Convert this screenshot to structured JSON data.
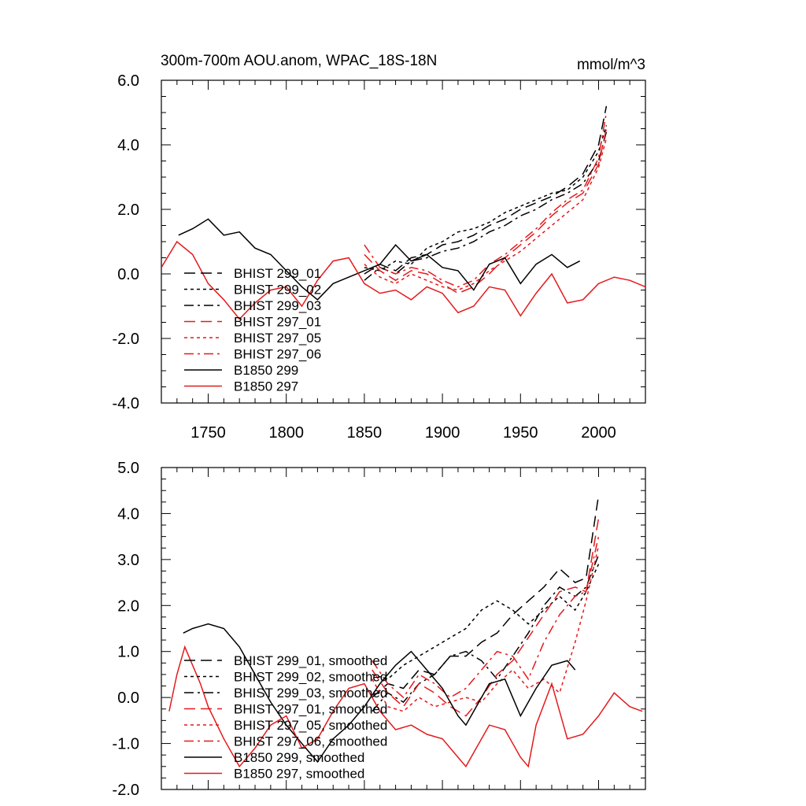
{
  "chart_data": [
    {
      "type": "line",
      "title": "300m-700m AOU.anom, WPAC_18S-18N",
      "units": "mmol/m^3",
      "xlim": [
        1720,
        2030
      ],
      "ylim": [
        -4.0,
        6.0
      ],
      "xticks": [
        1750,
        1800,
        1850,
        1900,
        1950,
        2000
      ],
      "xtick_labels": [
        "1750",
        "1800",
        "1850",
        "1900",
        "1950",
        "2000"
      ],
      "yticks": [
        -4.0,
        -2.0,
        0.0,
        2.0,
        4.0,
        6.0
      ],
      "ytick_labels": [
        "-4.0",
        "-2.0",
        "0.0",
        "2.0",
        "4.0",
        "6.0"
      ],
      "legend_position": "lower-left",
      "series": [
        {
          "name": "BHIST 299_01",
          "color": "#000000",
          "dash": "longdash",
          "x": [
            1850,
            1860,
            1870,
            1880,
            1890,
            1900,
            1910,
            1920,
            1930,
            1940,
            1950,
            1960,
            1970,
            1980,
            1990,
            2000,
            2005
          ],
          "y": [
            0.0,
            0.3,
            0.1,
            0.5,
            0.6,
            0.9,
            1.0,
            1.2,
            1.5,
            1.7,
            2.0,
            2.2,
            2.4,
            2.7,
            3.1,
            4.0,
            5.2
          ]
        },
        {
          "name": "BHIST 299_02",
          "color": "#000000",
          "dash": "shortdash",
          "x": [
            1850,
            1860,
            1870,
            1880,
            1890,
            1900,
            1910,
            1920,
            1930,
            1940,
            1950,
            1960,
            1970,
            1980,
            1990,
            2000,
            2005
          ],
          "y": [
            0.2,
            0.1,
            0.4,
            0.3,
            0.8,
            1.0,
            1.3,
            1.4,
            1.6,
            1.9,
            2.1,
            2.3,
            2.5,
            2.6,
            3.0,
            3.8,
            4.6
          ]
        },
        {
          "name": "BHIST 299_03",
          "color": "#000000",
          "dash": "dashdot",
          "x": [
            1850,
            1860,
            1870,
            1880,
            1890,
            1900,
            1910,
            1920,
            1930,
            1940,
            1950,
            1960,
            1970,
            1980,
            1990,
            2000,
            2005
          ],
          "y": [
            -0.2,
            0.2,
            0.0,
            0.4,
            0.5,
            0.7,
            0.8,
            1.0,
            1.3,
            1.5,
            1.8,
            2.0,
            2.3,
            2.5,
            2.8,
            3.5,
            4.4
          ]
        },
        {
          "name": "BHIST 297_01",
          "color": "#e41a1c",
          "dash": "longdash",
          "x": [
            1850,
            1860,
            1870,
            1880,
            1890,
            1900,
            1910,
            1920,
            1930,
            1940,
            1950,
            1960,
            1970,
            1980,
            1990,
            2000,
            2005
          ],
          "y": [
            0.6,
            0.1,
            -0.2,
            0.1,
            0.0,
            -0.3,
            -0.6,
            -0.4,
            0.0,
            0.5,
            0.9,
            1.3,
            1.8,
            2.2,
            2.5,
            3.4,
            4.5
          ]
        },
        {
          "name": "BHIST 297_05",
          "color": "#e41a1c",
          "dash": "shortdash",
          "x": [
            1850,
            1860,
            1870,
            1880,
            1890,
            1900,
            1910,
            1920,
            1930,
            1940,
            1950,
            1960,
            1970,
            1980,
            1990,
            2000,
            2005
          ],
          "y": [
            0.3,
            -0.1,
            -0.3,
            0.0,
            -0.2,
            -0.4,
            -0.5,
            -0.3,
            0.1,
            0.4,
            0.7,
            1.1,
            1.5,
            1.9,
            2.3,
            3.3,
            4.2
          ]
        },
        {
          "name": "BHIST 297_06",
          "color": "#e41a1c",
          "dash": "dashdot",
          "x": [
            1850,
            1860,
            1870,
            1880,
            1890,
            1900,
            1910,
            1920,
            1930,
            1940,
            1950,
            1960,
            1970,
            1980,
            1990,
            2000,
            2005
          ],
          "y": [
            0.9,
            0.2,
            0.0,
            0.2,
            0.1,
            -0.2,
            -0.4,
            -0.2,
            0.3,
            0.6,
            1.0,
            1.4,
            1.9,
            2.3,
            2.6,
            3.6,
            5.0
          ]
        },
        {
          "name": "B1850 299",
          "color": "#000000",
          "dash": "solid",
          "x": [
            1731,
            1740,
            1750,
            1760,
            1770,
            1780,
            1790,
            1800,
            1810,
            1820,
            1830,
            1840,
            1850,
            1860,
            1870,
            1880,
            1890,
            1900,
            1910,
            1920,
            1930,
            1940,
            1950,
            1960,
            1970,
            1980,
            1988
          ],
          "y": [
            1.2,
            1.4,
            1.7,
            1.2,
            1.3,
            0.8,
            0.6,
            0.1,
            -0.4,
            -0.8,
            -0.3,
            -0.1,
            0.1,
            0.3,
            0.9,
            0.4,
            0.6,
            0.2,
            0.1,
            -0.5,
            0.3,
            0.5,
            -0.3,
            0.3,
            0.6,
            0.2,
            0.4
          ]
        },
        {
          "name": "B1850 297",
          "color": "#e41a1c",
          "dash": "solid",
          "x": [
            1720,
            1730,
            1740,
            1750,
            1760,
            1770,
            1780,
            1790,
            1800,
            1810,
            1820,
            1830,
            1840,
            1850,
            1860,
            1870,
            1880,
            1890,
            1900,
            1910,
            1920,
            1930,
            1940,
            1950,
            1960,
            1970,
            1980,
            1990,
            2000,
            2010,
            2020,
            2030
          ],
          "y": [
            0.2,
            1.0,
            0.6,
            -0.3,
            -0.8,
            -1.4,
            -0.9,
            -0.5,
            -0.4,
            -1.0,
            -0.2,
            0.4,
            0.5,
            -0.3,
            -0.6,
            -0.5,
            -0.8,
            -0.4,
            -0.6,
            -1.2,
            -1.0,
            -0.4,
            -0.5,
            -1.3,
            -0.6,
            0.0,
            -0.9,
            -0.8,
            -0.3,
            -0.1,
            -0.2,
            -0.4
          ]
        }
      ]
    },
    {
      "type": "line",
      "xlim": [
        1720,
        2030
      ],
      "ylim": [
        -2.0,
        5.0
      ],
      "xticks": [
        1750,
        1800,
        1850,
        1900,
        1950,
        2000
      ],
      "yticks": [
        -2.0,
        -1.0,
        0.0,
        1.0,
        2.0,
        3.0,
        4.0,
        5.0
      ],
      "ytick_labels": [
        "-2.0",
        "-1.0",
        "0.0",
        "1.0",
        "2.0",
        "3.0",
        "4.0",
        "5.0"
      ],
      "legend_position": "lower-left",
      "series": [
        {
          "name": "BHIST 299_01, smoothed",
          "color": "#000000",
          "dash": "longdash",
          "x": [
            1855,
            1865,
            1875,
            1885,
            1895,
            1905,
            1915,
            1925,
            1935,
            1945,
            1955,
            1965,
            1975,
            1985,
            1992,
            2000
          ],
          "y": [
            0.0,
            0.3,
            0.2,
            0.6,
            0.5,
            0.9,
            0.9,
            1.2,
            1.4,
            1.8,
            2.1,
            2.4,
            2.8,
            2.5,
            2.6,
            4.4
          ]
        },
        {
          "name": "BHIST 299_02, smoothed",
          "color": "#000000",
          "dash": "shortdash",
          "x": [
            1855,
            1865,
            1875,
            1885,
            1895,
            1905,
            1915,
            1925,
            1935,
            1945,
            1955,
            1965,
            1975,
            1985,
            1992,
            2000
          ],
          "y": [
            0.5,
            0.4,
            0.7,
            0.9,
            1.1,
            1.3,
            1.5,
            1.9,
            2.1,
            1.9,
            1.6,
            1.9,
            2.2,
            1.9,
            2.3,
            2.9
          ]
        },
        {
          "name": "BHIST 299_03, smoothed",
          "color": "#000000",
          "dash": "dashdot",
          "x": [
            1855,
            1865,
            1875,
            1885,
            1895,
            1905,
            1915,
            1925,
            1935,
            1945,
            1955,
            1965,
            1975,
            1985,
            1992,
            2000
          ],
          "y": [
            -0.3,
            0.1,
            -0.1,
            0.3,
            0.5,
            0.9,
            1.0,
            0.8,
            0.4,
            0.9,
            1.4,
            2.0,
            2.4,
            2.2,
            2.4,
            3.1
          ]
        },
        {
          "name": "BHIST 297_01, smoothed",
          "color": "#e41a1c",
          "dash": "longdash",
          "x": [
            1855,
            1865,
            1875,
            1885,
            1895,
            1905,
            1915,
            1925,
            1935,
            1945,
            1955,
            1965,
            1975,
            1985,
            1992,
            2000
          ],
          "y": [
            0.6,
            0.1,
            -0.2,
            0.3,
            0.1,
            -0.2,
            -0.4,
            0.0,
            0.5,
            0.8,
            1.3,
            1.8,
            2.3,
            2.4,
            2.3,
            3.9
          ]
        },
        {
          "name": "BHIST 297_05, smoothed",
          "color": "#e41a1c",
          "dash": "shortdash",
          "x": [
            1855,
            1865,
            1875,
            1885,
            1895,
            1905,
            1915,
            1925,
            1935,
            1945,
            1955,
            1965,
            1975,
            1985,
            1992,
            2000
          ],
          "y": [
            0.4,
            -0.2,
            -0.3,
            0.0,
            -0.2,
            -0.1,
            0.0,
            -0.1,
            0.3,
            0.6,
            0.2,
            0.4,
            0.1,
            1.2,
            2.1,
            3.3
          ]
        },
        {
          "name": "BHIST 297_06, smoothed",
          "color": "#e41a1c",
          "dash": "dashdot",
          "x": [
            1855,
            1865,
            1875,
            1885,
            1895,
            1905,
            1915,
            1925,
            1935,
            1945,
            1955,
            1965,
            1975,
            1985,
            1992,
            2000
          ],
          "y": [
            0.8,
            0.3,
            0.0,
            0.5,
            0.3,
            0.0,
            0.2,
            0.6,
            1.0,
            0.9,
            0.4,
            1.2,
            1.8,
            2.2,
            2.3,
            3.5
          ]
        },
        {
          "name": "B1850 299, smoothed",
          "color": "#000000",
          "dash": "solid",
          "x": [
            1734,
            1740,
            1750,
            1760,
            1770,
            1780,
            1790,
            1800,
            1810,
            1820,
            1830,
            1840,
            1850,
            1860,
            1870,
            1880,
            1890,
            1900,
            1910,
            1915,
            1920,
            1930,
            1940,
            1950,
            1960,
            1970,
            1980,
            1985
          ],
          "y": [
            1.4,
            1.5,
            1.6,
            1.5,
            1.1,
            0.5,
            -0.1,
            -0.6,
            -1.0,
            -1.4,
            -0.9,
            -0.6,
            -0.2,
            0.3,
            0.7,
            1.0,
            0.6,
            0.2,
            -0.4,
            -0.6,
            -0.3,
            0.3,
            0.4,
            -0.4,
            0.2,
            0.7,
            0.8,
            0.6
          ]
        },
        {
          "name": "B1850 297, smoothed",
          "color": "#e41a1c",
          "dash": "solid",
          "x": [
            1725,
            1730,
            1735,
            1740,
            1745,
            1750,
            1760,
            1770,
            1780,
            1790,
            1800,
            1810,
            1820,
            1830,
            1840,
            1850,
            1860,
            1870,
            1880,
            1890,
            1900,
            1910,
            1915,
            1920,
            1930,
            1940,
            1950,
            1955,
            1960,
            1970,
            1980,
            1990,
            2000,
            2010,
            2020,
            2028
          ],
          "y": [
            -0.3,
            0.5,
            1.1,
            0.7,
            0.3,
            -0.2,
            -0.9,
            -1.5,
            -1.1,
            -0.6,
            -0.4,
            -1.1,
            -0.9,
            -0.3,
            0.2,
            0.3,
            -0.3,
            -0.7,
            -0.6,
            -0.8,
            -0.9,
            -1.3,
            -1.5,
            -1.2,
            -0.6,
            -0.7,
            -1.3,
            -1.5,
            -0.6,
            0.3,
            -0.9,
            -0.8,
            -0.4,
            0.1,
            -0.2,
            -0.3
          ]
        }
      ]
    }
  ]
}
